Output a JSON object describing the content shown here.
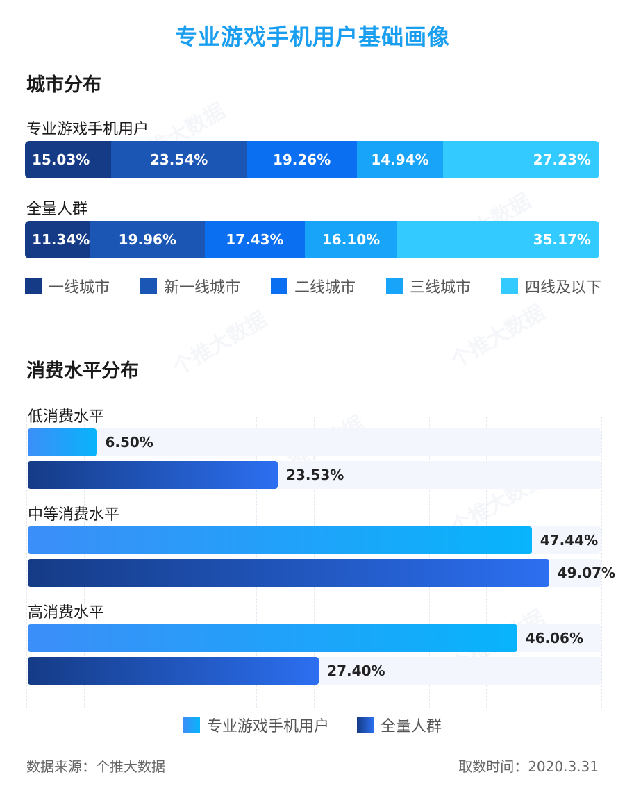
{
  "title": "专业游戏手机用户基础画像",
  "city": {
    "section_title": "城市分布",
    "groups": [
      {
        "label": "专业游戏手机用户",
        "values": [
          15.03,
          23.54,
          19.26,
          14.94,
          27.23
        ],
        "texts": [
          "15.03%",
          "23.54%",
          "19.26%",
          "14.94%",
          "27.23%"
        ]
      },
      {
        "label": "全量人群",
        "values": [
          11.34,
          19.96,
          17.43,
          16.1,
          35.17
        ],
        "texts": [
          "11.34%",
          "19.96%",
          "17.43%",
          "16.10%",
          "35.17%"
        ]
      }
    ],
    "legend": [
      "一线城市",
      "新一线城市",
      "二线城市",
      "三线城市",
      "四线及以下"
    ],
    "colors": [
      "#153b86",
      "#1c56b4",
      "#0a6ff0",
      "#18a4f8",
      "#32caff"
    ]
  },
  "consumption": {
    "section_title": "消费水平分布",
    "legend": [
      "专业游戏手机用户",
      "全量人群"
    ],
    "legend_colors": [
      "#2fa3f8",
      "#1c48a8"
    ]
  },
  "chart_data": [
    {
      "type": "bar",
      "orientation": "horizontal-stacked",
      "title": "城市分布",
      "categories": [
        "专业游戏手机用户",
        "全量人群"
      ],
      "series": [
        {
          "name": "一线城市",
          "values": [
            15.03,
            11.34
          ]
        },
        {
          "name": "新一线城市",
          "values": [
            23.54,
            19.96
          ]
        },
        {
          "name": "二线城市",
          "values": [
            19.26,
            17.43
          ]
        },
        {
          "name": "三线城市",
          "values": [
            14.94,
            16.1
          ]
        },
        {
          "name": "四线及以下",
          "values": [
            27.23,
            35.17
          ]
        }
      ],
      "legend": "bottom"
    },
    {
      "type": "bar",
      "orientation": "horizontal",
      "title": "消费水平分布",
      "categories": [
        "低消费水平",
        "中等消费水平",
        "高消费水平"
      ],
      "series": [
        {
          "name": "专业游戏手机用户",
          "values": [
            6.5,
            47.44,
            46.06
          ],
          "labels": [
            "6.50%",
            "47.44%",
            "46.06%"
          ]
        },
        {
          "name": "全量人群",
          "values": [
            23.53,
            49.07,
            27.4
          ],
          "labels": [
            "23.53%",
            "49.07%",
            "27.40%"
          ]
        }
      ],
      "xlim": [
        0,
        55
      ],
      "legend": "bottom"
    }
  ],
  "footer": {
    "source": "数据来源：个推大数据",
    "date": "取数时间：2020.3.31"
  },
  "watermark": "个推大数据"
}
